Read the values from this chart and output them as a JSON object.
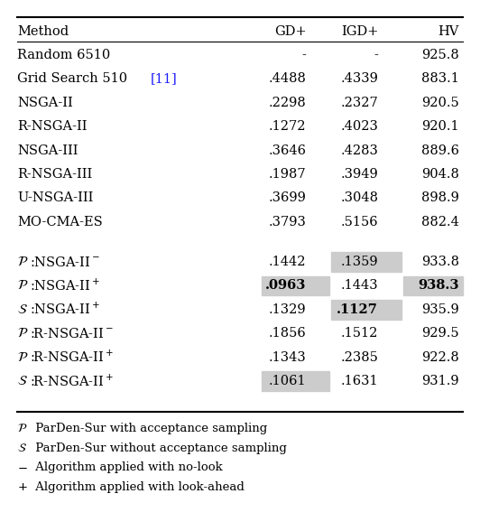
{
  "headers": [
    "Method",
    "GD+",
    "IGD+",
    "HV"
  ],
  "rows_group1": [
    [
      "Random 6510",
      "-",
      "-",
      "925.8"
    ],
    [
      "Grid Search 510 [11]",
      ".4488",
      ".4339",
      "883.1"
    ],
    [
      "NSGA-II",
      ".2298",
      ".2327",
      "920.5"
    ],
    [
      "R-NSGA-II",
      ".1272",
      ".4023",
      "920.1"
    ],
    [
      "NSGA-III",
      ".3646",
      ".4283",
      "889.6"
    ],
    [
      "R-NSGA-III",
      ".1987",
      ".3949",
      "904.8"
    ],
    [
      "U-NSGA-III",
      ".3699",
      ".3048",
      "898.9"
    ],
    [
      "MO-CMA-ES",
      ".3793",
      ".5156",
      "882.4"
    ]
  ],
  "rows_group2": [
    {
      "prefix": "P",
      "method": ":NSGA-II$^{-}$",
      "gd": ".1442",
      "igd": ".1359",
      "hv": "933.8",
      "hl_gd": false,
      "hl_igd": true,
      "hl_hv": false,
      "bold_gd": false,
      "bold_igd": false,
      "bold_hv": false
    },
    {
      "prefix": "P",
      "method": ":NSGA-II$^{+}$",
      "gd": ".0963",
      "igd": ".1443",
      "hv": "938.3",
      "hl_gd": true,
      "hl_igd": false,
      "hl_hv": true,
      "bold_gd": true,
      "bold_igd": false,
      "bold_hv": true
    },
    {
      "prefix": "S",
      "method": ":NSGA-II$^{+}$",
      "gd": ".1329",
      "igd": ".1127",
      "hv": "935.9",
      "hl_gd": false,
      "hl_igd": true,
      "hl_hv": false,
      "bold_gd": false,
      "bold_igd": true,
      "bold_hv": false
    },
    {
      "prefix": "P",
      "method": ":R-NSGA-II$^{-}$",
      "gd": ".1856",
      "igd": ".1512",
      "hv": "929.5",
      "hl_gd": false,
      "hl_igd": false,
      "hl_hv": false,
      "bold_gd": false,
      "bold_igd": false,
      "bold_hv": false
    },
    {
      "prefix": "P",
      "method": ":R-NSGA-II$^{+}$",
      "gd": ".1343",
      "igd": ".2385",
      "hv": "922.8",
      "hl_gd": false,
      "hl_igd": false,
      "hl_hv": false,
      "bold_gd": false,
      "bold_igd": false,
      "bold_hv": false
    },
    {
      "prefix": "S",
      "method": ":R-NSGA-II$^{+}$",
      "gd": ".1061",
      "igd": ".1631",
      "hv": "931.9",
      "hl_gd": true,
      "hl_igd": false,
      "hl_hv": false,
      "bold_gd": false,
      "bold_igd": false,
      "bold_hv": false
    }
  ],
  "footnotes": [
    {
      "symbol": "P",
      "text": " ParDen-Sur with acceptance sampling"
    },
    {
      "symbol": "S",
      "text": " ParDen-Sur without acceptance sampling"
    },
    {
      "symbol": "$-$",
      "text": " Algorithm applied with no-look"
    },
    {
      "symbol": "$+$",
      "text": " Algorithm applied with look-ahead"
    }
  ],
  "highlight_color": "#cccccc",
  "ref_color": "#1a1aff"
}
